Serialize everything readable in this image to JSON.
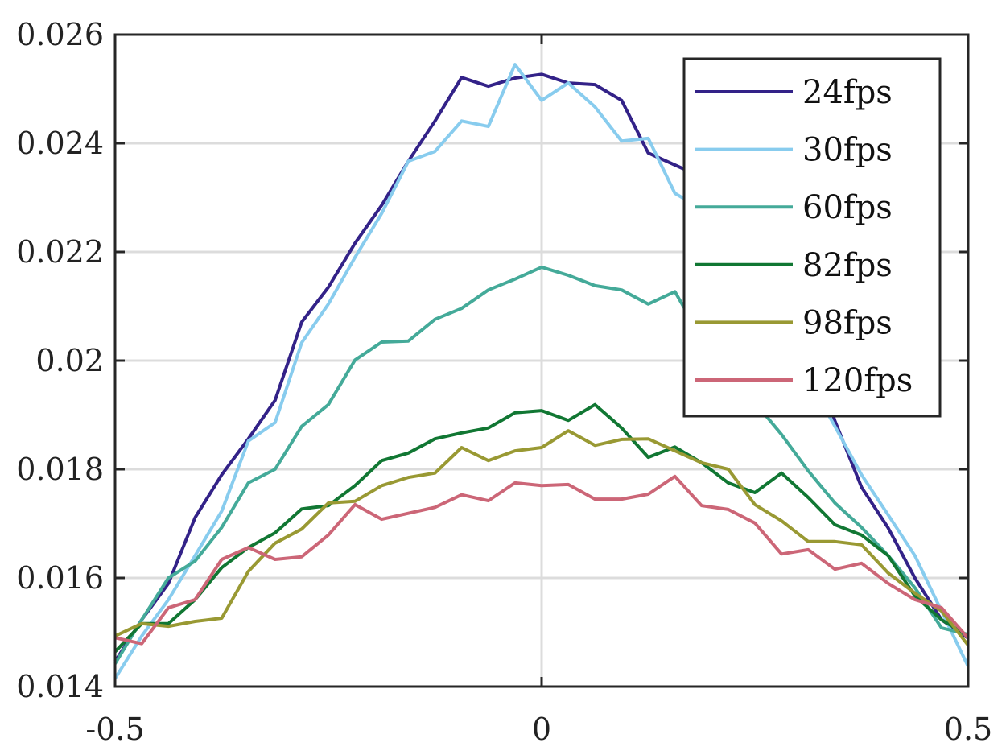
{
  "chart_data": {
    "type": "line",
    "title": "",
    "xlabel": "",
    "ylabel": "",
    "xlim": [
      -0.5,
      0.5
    ],
    "ylim": [
      0.014,
      0.026
    ],
    "xticks": [
      -0.5,
      0,
      0.5
    ],
    "xtick_labels": [
      "-0.5",
      "0",
      "0.5"
    ],
    "yticks": [
      0.014,
      0.016,
      0.018,
      0.02,
      0.022,
      0.024,
      0.026
    ],
    "ytick_labels": [
      "0.014",
      "0.016",
      "0.018",
      "0.02",
      "0.022",
      "0.024",
      "0.026"
    ],
    "grid": true,
    "legend_position": "top-right",
    "x": [
      -0.5,
      -0.46875,
      -0.4375,
      -0.40625,
      -0.375,
      -0.34375,
      -0.3125,
      -0.28125,
      -0.25,
      -0.21875,
      -0.1875,
      -0.15625,
      -0.125,
      -0.09375,
      -0.0625,
      -0.03125,
      0,
      0.03125,
      0.0625,
      0.09375,
      0.125,
      0.15625,
      0.1875,
      0.21875,
      0.25,
      0.28125,
      0.3125,
      0.34375,
      0.375,
      0.40625,
      0.4375,
      0.46875,
      0.5
    ],
    "series": [
      {
        "name": "24fps",
        "color": "#332288",
        "values": [
          0.01446,
          0.01523,
          0.0159,
          0.01711,
          0.0179,
          0.01856,
          0.01927,
          0.02071,
          0.02135,
          0.02216,
          0.02286,
          0.02367,
          0.02441,
          0.02521,
          0.02505,
          0.0252,
          0.02527,
          0.02511,
          0.02508,
          0.02479,
          0.02382,
          0.0236,
          0.02338,
          0.02308,
          0.02249,
          0.0216,
          0.02041,
          0.01889,
          0.01767,
          0.01692,
          0.016,
          0.01523,
          0.01489
        ]
      },
      {
        "name": "30fps",
        "color": "#88CCEE",
        "values": [
          0.01415,
          0.01493,
          0.0156,
          0.01641,
          0.01723,
          0.01852,
          0.01886,
          0.02033,
          0.02104,
          0.0219,
          0.02271,
          0.02367,
          0.02385,
          0.02441,
          0.02431,
          0.02545,
          0.02479,
          0.02511,
          0.02467,
          0.02404,
          0.02409,
          0.02308,
          0.02279,
          0.02242,
          0.02175,
          0.02086,
          0.01967,
          0.01879,
          0.0179,
          0.01716,
          0.01641,
          0.01539,
          0.01437
        ]
      },
      {
        "name": "60fps",
        "color": "#44AA99",
        "values": [
          0.01442,
          0.01523,
          0.016,
          0.01631,
          0.01693,
          0.01775,
          0.018,
          0.01879,
          0.01919,
          0.02001,
          0.02034,
          0.02036,
          0.02076,
          0.02096,
          0.0213,
          0.0215,
          0.02172,
          0.02157,
          0.02138,
          0.0213,
          0.02104,
          0.02127,
          0.02041,
          0.01982,
          0.01923,
          0.01864,
          0.01797,
          0.01738,
          0.01693,
          0.01641,
          0.01582,
          0.01508,
          0.01496
        ]
      },
      {
        "name": "82fps",
        "color": "#117733",
        "values": [
          0.01464,
          0.01516,
          0.01516,
          0.0156,
          0.01619,
          0.01656,
          0.01683,
          0.01727,
          0.01733,
          0.0177,
          0.01816,
          0.0183,
          0.01856,
          0.01867,
          0.01876,
          0.01904,
          0.01908,
          0.0189,
          0.01919,
          0.01876,
          0.01822,
          0.01841,
          0.01812,
          0.01775,
          0.01757,
          0.01793,
          0.01748,
          0.01698,
          0.01679,
          0.01641,
          0.01567,
          0.01523,
          0.01493
        ]
      },
      {
        "name": "98fps",
        "color": "#999933",
        "values": [
          0.01493,
          0.01516,
          0.01511,
          0.0152,
          0.01526,
          0.01612,
          0.01664,
          0.0169,
          0.01738,
          0.01741,
          0.0177,
          0.01785,
          0.01793,
          0.0184,
          0.01816,
          0.01834,
          0.0184,
          0.01871,
          0.01844,
          0.01855,
          0.01856,
          0.01834,
          0.01812,
          0.018,
          0.01735,
          0.01705,
          0.01667,
          0.01667,
          0.01661,
          0.01609,
          0.01572,
          0.01539,
          0.01476
        ]
      },
      {
        "name": "120fps",
        "color": "#CC6677",
        "values": [
          0.0149,
          0.01479,
          0.01545,
          0.0156,
          0.01634,
          0.01656,
          0.01634,
          0.01639,
          0.01679,
          0.01735,
          0.01708,
          0.01719,
          0.0173,
          0.01753,
          0.01742,
          0.01775,
          0.0177,
          0.01772,
          0.01745,
          0.01745,
          0.01754,
          0.01787,
          0.01733,
          0.01726,
          0.01701,
          0.01644,
          0.01652,
          0.01616,
          0.01627,
          0.0159,
          0.0156,
          0.01545,
          0.01489
        ]
      }
    ]
  }
}
